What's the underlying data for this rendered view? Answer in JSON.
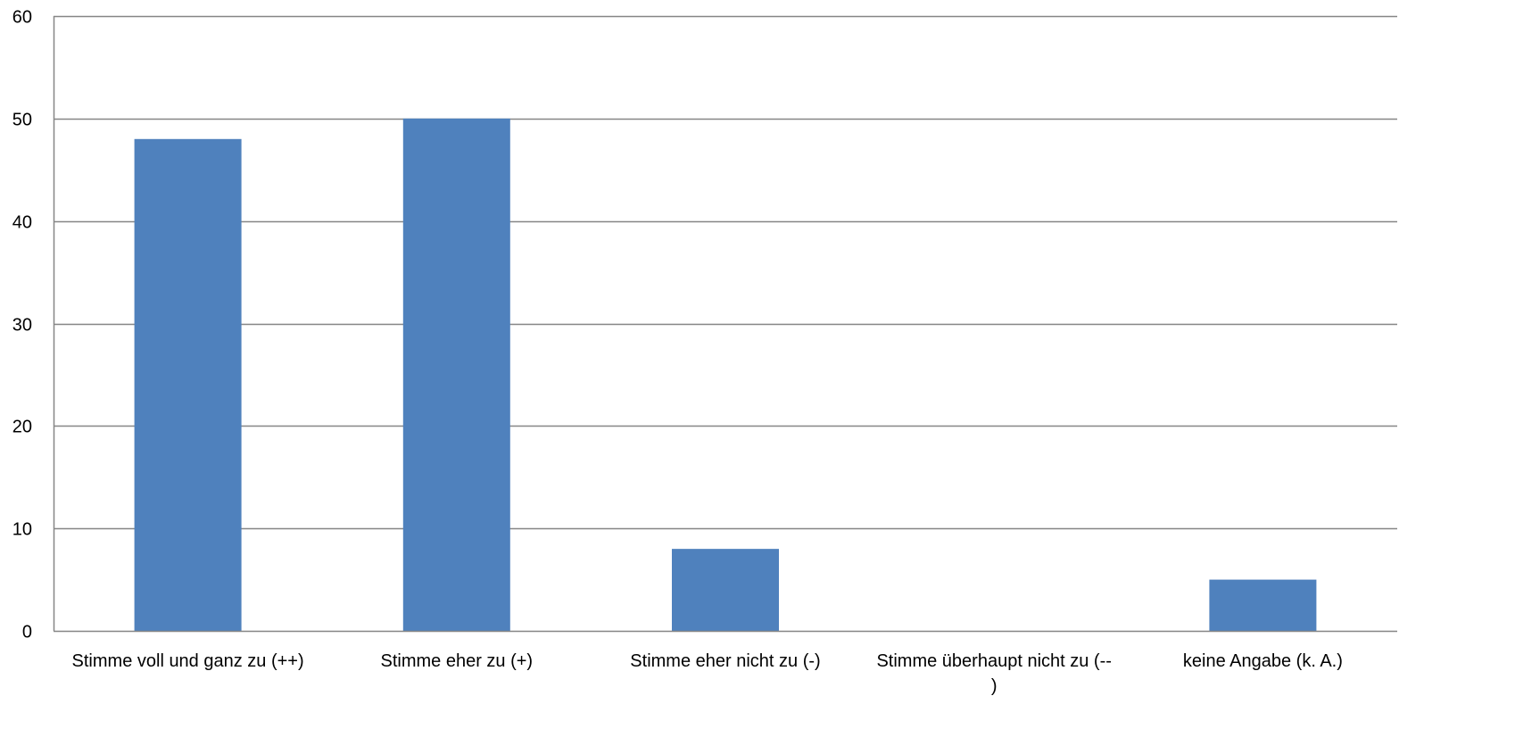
{
  "chart_data": {
    "type": "bar",
    "title": "",
    "xlabel": "",
    "ylabel": "",
    "categories": [
      [
        "Stimme voll und ganz zu (++)"
      ],
      [
        "Stimme eher zu (+)"
      ],
      [
        "Stimme eher nicht zu (-)"
      ],
      [
        "Stimme überhaupt nicht zu (--",
        ")"
      ],
      [
        "keine Angabe (k. A.)"
      ]
    ],
    "values": [
      48,
      50,
      8,
      0,
      5
    ],
    "ylim": [
      0,
      60
    ],
    "yticks": [
      0,
      10,
      20,
      30,
      40,
      50,
      60
    ],
    "grid": true,
    "legend": "none",
    "colors": {
      "bar": "#4f81bd",
      "grid": "#868686",
      "axis": "#868686",
      "text": "#000000"
    }
  }
}
